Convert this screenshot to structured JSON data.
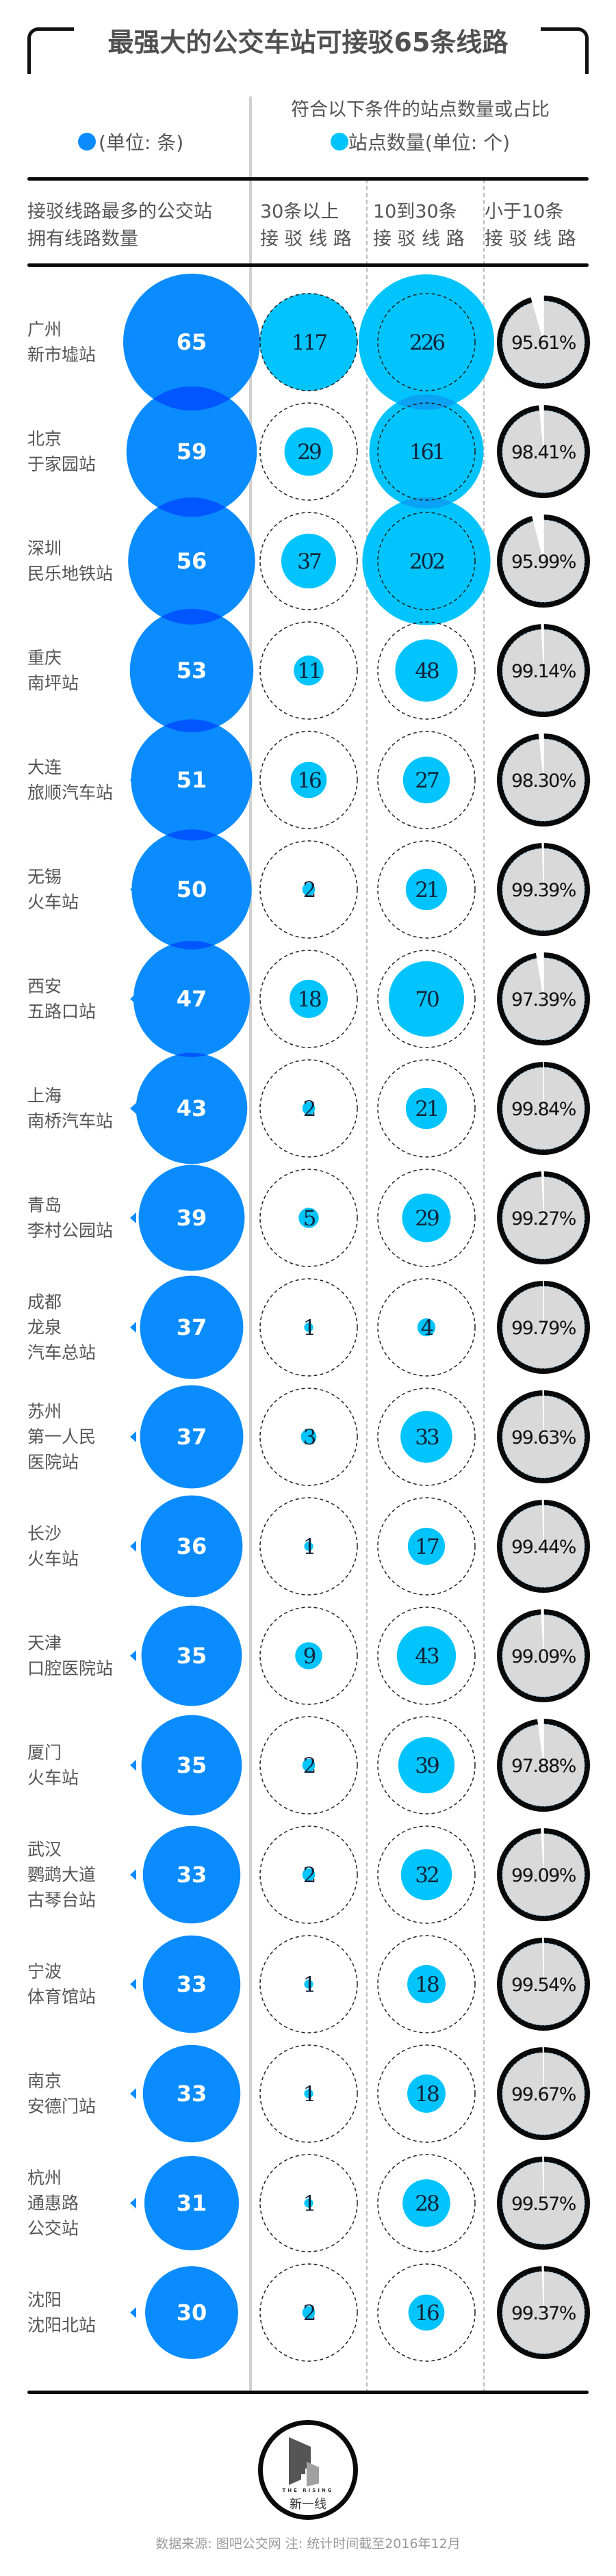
{
  "title": "最强大的公交车站可接驳65条线路",
  "legend": {
    "left": "(单位: 条)",
    "right_top": "符合以下条件的站点数量或占比",
    "right": "站点数量(单位: 个)"
  },
  "headers": {
    "col0": "接驳线路最多的公交站\n拥有线路数量",
    "col1": "30条以上\n接 驳 线 路",
    "col2": "10到30条\n接 驳 线 路",
    "col3": "小于10条\n接 驳 线 路"
  },
  "colors": {
    "primary_blue": "#0a8cff",
    "primary_overlap": "#0057ff",
    "light_blue": "#00c4fb",
    "light_overlap": "#0aa2f5",
    "pie_fill": "#d9d9d9",
    "ring": "#0a0a0a"
  },
  "footer": "数据来源: 图吧公交网   注: 统计时间截至2016年12月",
  "logo": {
    "en": "THE RISING",
    "cn": "新一线"
  },
  "chart_data": {
    "type": "table",
    "title": "最强大的公交车站可接驳65条线路",
    "columns": [
      "接驳线路最多的公交站",
      "拥有线路数量(条)",
      "30条以上接驳线路(个)",
      "10到30条接驳线路(个)",
      "小于10条接驳线路(占比)"
    ],
    "rows": [
      {
        "city": "广州",
        "station": "新市墟站",
        "label": "广州\n新市墟站",
        "lines": 65,
        "over30": 117,
        "from10to30": 226,
        "under10_pct": "95.61%",
        "under10": 95.61
      },
      {
        "city": "北京",
        "station": "于家园站",
        "label": "北京\n于家园站",
        "lines": 59,
        "over30": 29,
        "from10to30": 161,
        "under10_pct": "98.41%",
        "under10": 98.41
      },
      {
        "city": "深圳",
        "station": "民乐地铁站",
        "label": "深圳\n民乐地铁站",
        "lines": 56,
        "over30": 37,
        "from10to30": 202,
        "under10_pct": "95.99%",
        "under10": 95.99
      },
      {
        "city": "重庆",
        "station": "南坪站",
        "label": "重庆\n南坪站",
        "lines": 53,
        "over30": 11,
        "from10to30": 48,
        "under10_pct": "99.14%",
        "under10": 99.14
      },
      {
        "city": "大连",
        "station": "旅顺汽车站",
        "label": "大连\n旅顺汽车站",
        "lines": 51,
        "over30": 16,
        "from10to30": 27,
        "under10_pct": "98.30%",
        "under10": 98.3
      },
      {
        "city": "无锡",
        "station": "火车站",
        "label": "无锡\n火车站",
        "lines": 50,
        "over30": 2,
        "from10to30": 21,
        "under10_pct": "99.39%",
        "under10": 99.39
      },
      {
        "city": "西安",
        "station": "五路口站",
        "label": "西安\n五路口站",
        "lines": 47,
        "over30": 18,
        "from10to30": 70,
        "under10_pct": "97.39%",
        "under10": 97.39
      },
      {
        "city": "上海",
        "station": "南桥汽车站",
        "label": "上海\n南桥汽车站",
        "lines": 43,
        "over30": 2,
        "from10to30": 21,
        "under10_pct": "99.84%",
        "under10": 99.84
      },
      {
        "city": "青岛",
        "station": "李村公园站",
        "label": "青岛\n李村公园站",
        "lines": 39,
        "over30": 5,
        "from10to30": 29,
        "under10_pct": "99.27%",
        "under10": 99.27
      },
      {
        "city": "成都",
        "station": "龙泉汽车总站",
        "label": "成都\n龙泉\n汽车总站",
        "lines": 37,
        "over30": 1,
        "from10to30": 4,
        "under10_pct": "99.79%",
        "under10": 99.79
      },
      {
        "city": "苏州",
        "station": "第一人民医院站",
        "label": "苏州\n第一人民\n医院站",
        "lines": 37,
        "over30": 3,
        "from10to30": 33,
        "under10_pct": "99.63%",
        "under10": 99.63
      },
      {
        "city": "长沙",
        "station": "火车站",
        "label": "长沙\n火车站",
        "lines": 36,
        "over30": 1,
        "from10to30": 17,
        "under10_pct": "99.44%",
        "under10": 99.44
      },
      {
        "city": "天津",
        "station": "口腔医院站",
        "label": "天津\n口腔医院站",
        "lines": 35,
        "over30": 9,
        "from10to30": 43,
        "under10_pct": "99.09%",
        "under10": 99.09
      },
      {
        "city": "厦门",
        "station": "火车站",
        "label": "厦门\n火车站",
        "lines": 35,
        "over30": 2,
        "from10to30": 39,
        "under10_pct": "97.88%",
        "under10": 97.88
      },
      {
        "city": "武汉",
        "station": "鹦鹉大道古琴台站",
        "label": "武汉\n鹦鹉大道\n古琴台站",
        "lines": 33,
        "over30": 2,
        "from10to30": 32,
        "under10_pct": "99.09%",
        "under10": 99.09
      },
      {
        "city": "宁波",
        "station": "体育馆站",
        "label": "宁波\n体育馆站",
        "lines": 33,
        "over30": 1,
        "from10to30": 18,
        "under10_pct": "99.54%",
        "under10": 99.54
      },
      {
        "city": "南京",
        "station": "安德门站",
        "label": "南京\n安德门站",
        "lines": 33,
        "over30": 1,
        "from10to30": 18,
        "under10_pct": "99.67%",
        "under10": 99.67
      },
      {
        "city": "杭州",
        "station": "通惠路公交站",
        "label": "杭州\n通惠路\n公交站",
        "lines": 31,
        "over30": 1,
        "from10to30": 28,
        "under10_pct": "99.57%",
        "under10": 99.57
      },
      {
        "city": "沈阳",
        "station": "沈阳北站",
        "label": "沈阳\n沈阳北站",
        "lines": 30,
        "over30": 2,
        "from10to30": 16,
        "under10_pct": "99.37%",
        "under10": 99.37
      }
    ],
    "units": {
      "lines": "条",
      "over30": "个",
      "from10to30": "个",
      "under10": "%"
    },
    "encoding": "circle area proportional to value"
  }
}
